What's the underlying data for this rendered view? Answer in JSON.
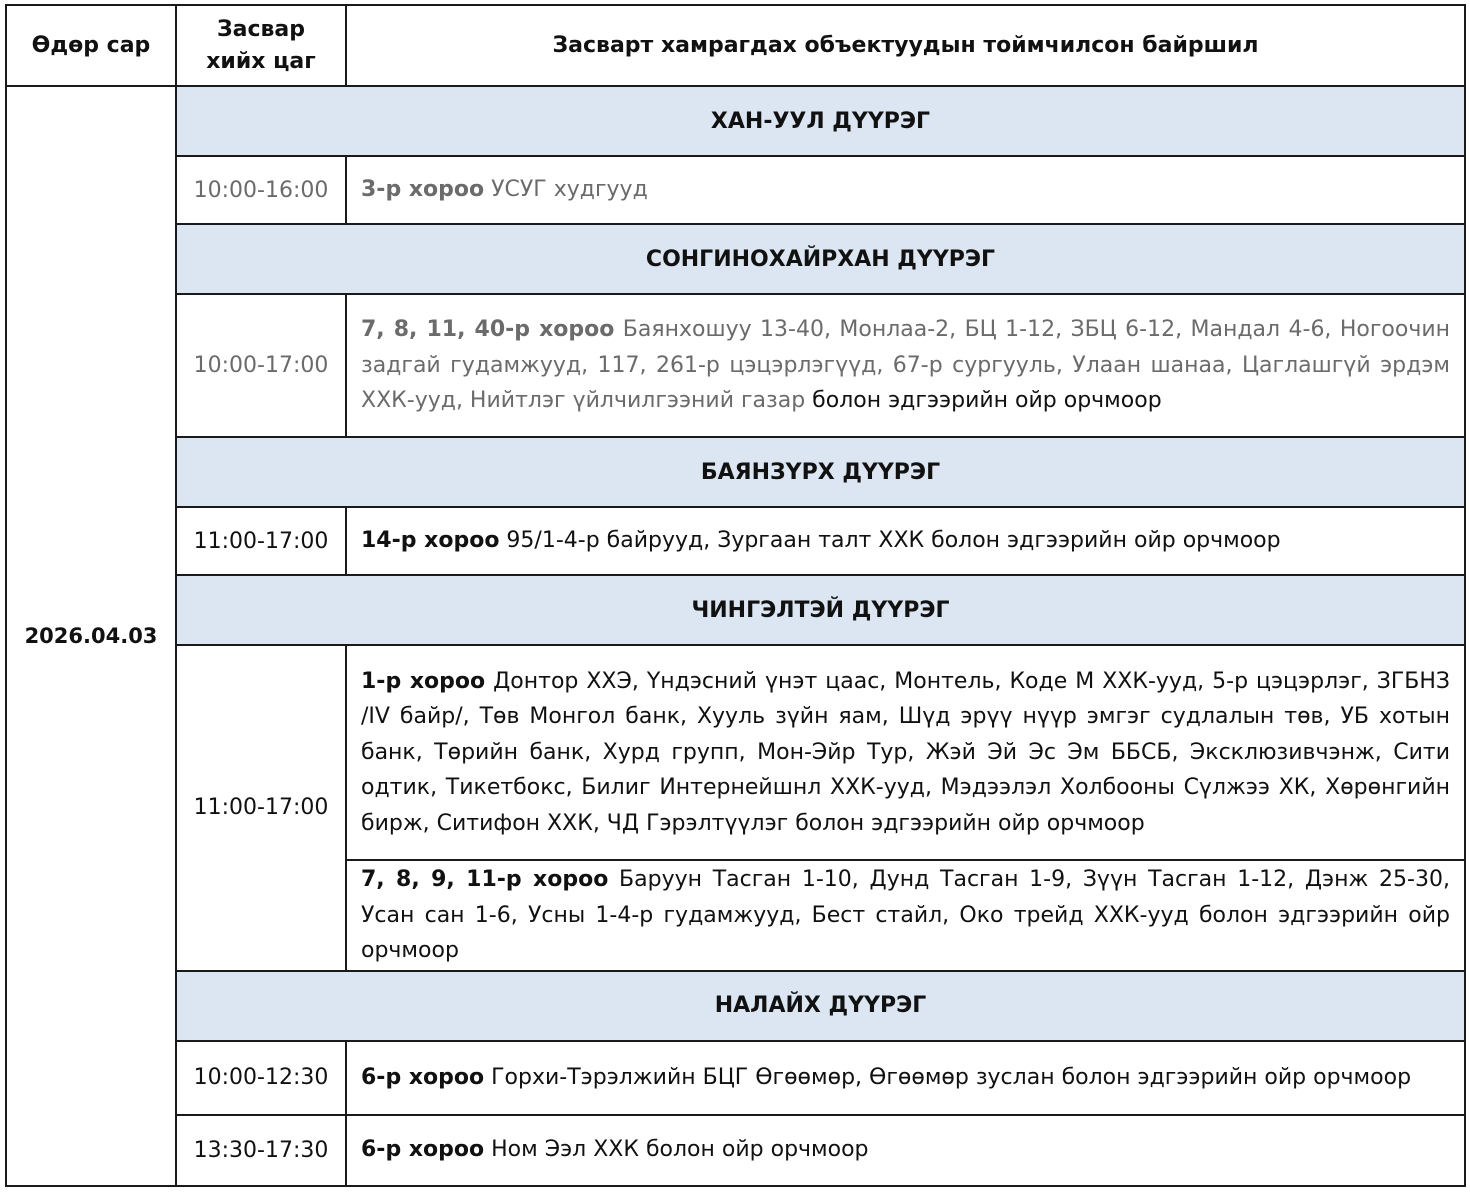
{
  "headers": {
    "date": "Өдөр сар",
    "time": "Засвар хийх цаг",
    "location": "Засварт хамрагдах объектуудын тоймчилсон байршил"
  },
  "date": "2026.04.03",
  "districts": [
    {
      "name": "ХАН-УУЛ ДҮҮРЭГ",
      "rows": [
        {
          "time": "10:00-16:00",
          "bold": "3-р хороо",
          "text": " УСУГ худгууд",
          "tail": ""
        }
      ]
    },
    {
      "name": "СОНГИНОХАЙРХАН ДҮҮРЭГ",
      "rows": [
        {
          "time": "10:00-17:00",
          "bold": "7, 8, 11, 40-р хороо",
          "text": " Баянхошуу 13-40, Монлаа-2, БЦ 1-12, ЗБЦ 6-12, Мандал 4-6, Ногоочин задгай гудамжууд, 117, 261-р цэцэрлэгүүд, 67-р сургууль, Улаан шанаа, Цаглашгүй эрдэм ХХК-ууд, Нийтлэг үйлчилгээний газар",
          "tail": " болон эдгээрийн ойр орчмоор"
        }
      ]
    },
    {
      "name": "БАЯНЗҮРХ ДҮҮРЭГ",
      "rows": [
        {
          "time": "11:00-17:00",
          "bold": "14-р хороо",
          "text": " 95/1-4-р байрууд, Зургаан талт ХХК болон эдгээрийн ойр орчмоор",
          "tail": ""
        }
      ]
    },
    {
      "name": "ЧИНГЭЛТЭЙ ДҮҮРЭГ",
      "rows": [
        {
          "time": "11:00-17:00",
          "bold": "1-р хороо",
          "text": " Донтор ХХЭ, Үндэсний үнэт цаас, Монтель, Коде М ХХК-ууд, 5-р цэцэрлэг, ЗГБНЗ /IV байр/, Төв Монгол банк, Хууль зүйн яам, Шүд эрүү нүүр эмгэг судлалын төв, УБ хотын банк, Төрийн банк, Хурд групп, Мон-Эйр Тур, Жэй Эй Эс Эм ББСБ, Эксклюзивчэнж, Сити одтик, Тикетбокс, Билиг Интернейшнл ХХК-ууд, Мэдээлэл Холбооны Сүлжээ ХК, Хөрөнгийн бирж, Ситифон ХХК, ЧД Гэрэлтүүлэг болон эдгээрийн ойр орчмоор",
          "tail": ""
        },
        {
          "bold": "7, 8, 9, 11-р хороо",
          "text": " Баруун Тасган 1-10, Дунд Тасган 1-9, Зүүн Тасган 1-12, Дэнж 25-30, Усан сан 1-6, Усны 1-4-р гудамжууд, Бест стайл, Око трейд ХХК-ууд болон эдгээрийн ойр орчмоор",
          "tail": ""
        }
      ]
    },
    {
      "name": "НАЛАЙХ ДҮҮРЭГ",
      "rows": [
        {
          "time": "10:00-12:30",
          "bold": "6-р хороо",
          "text": " Горхи-Тэрэлжийн БЦГ Өгөөмөр, Өгөөмөр зуслан болон эдгээрийн ойр орчмоор",
          "tail": ""
        },
        {
          "time": "13:30-17:30",
          "bold": "6-р хороо",
          "text": " Ном Ээл ХХК болон ойр орчмоор",
          "tail": ""
        }
      ]
    }
  ]
}
